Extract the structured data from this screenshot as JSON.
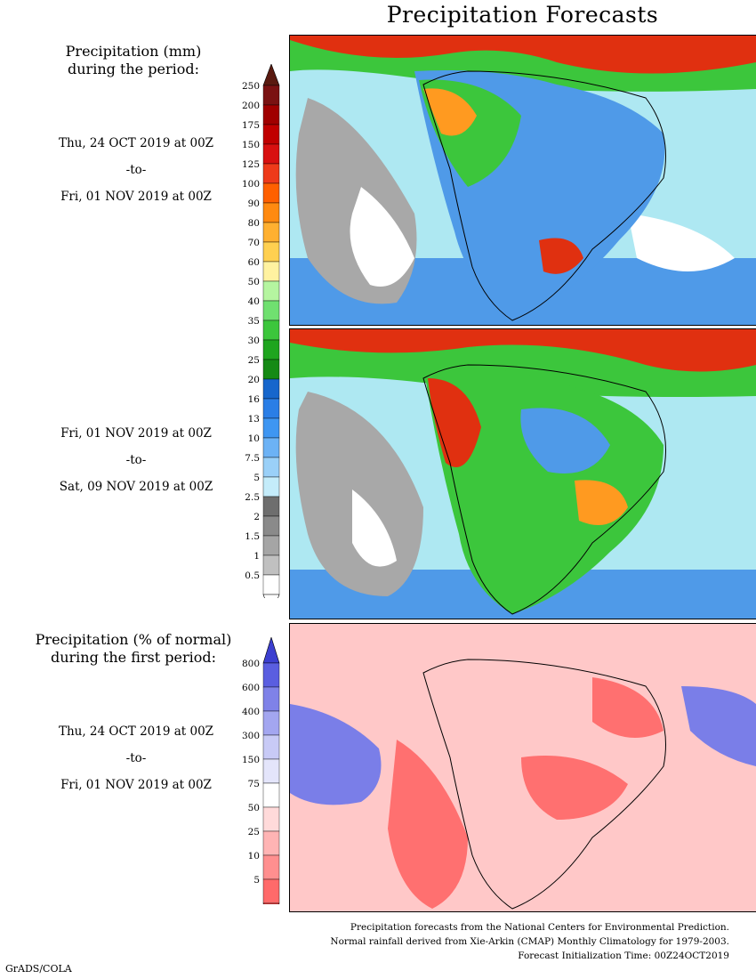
{
  "title": "Precipitation Forecasts",
  "section_mm": {
    "heading_line1": "Precipitation (mm)",
    "heading_line2": "during the period:"
  },
  "period1": {
    "start": "Thu, 24 OCT 2019 at 00Z",
    "sep": "-to-",
    "end": "Fri, 01 NOV 2019 at 00Z"
  },
  "period2": {
    "start": "Fri, 01 NOV 2019 at 00Z",
    "sep": "-to-",
    "end": "Sat, 09 NOV 2019 at 00Z"
  },
  "section_pct": {
    "heading_line1": "Precipitation (% of normal)",
    "heading_line2": "during the first period:"
  },
  "period3": {
    "start": "Thu, 24 OCT 2019 at 00Z",
    "sep": "-to-",
    "end": "Fri, 01 NOV 2019 at 00Z"
  },
  "colorbar_mm": {
    "labels": [
      "250",
      "200",
      "175",
      "150",
      "125",
      "100",
      "90",
      "80",
      "70",
      "60",
      "50",
      "40",
      "35",
      "30",
      "25",
      "20",
      "16",
      "13",
      "10",
      "7.5",
      "5",
      "2.5",
      "2",
      "1.5",
      "1",
      "0.5"
    ],
    "colors": [
      "#7a1212",
      "#a00000",
      "#c00000",
      "#d81010",
      "#ee3a1a",
      "#ff6000",
      "#ff8a10",
      "#ffb030",
      "#ffd050",
      "#fff2a0",
      "#b5f5a0",
      "#70e070",
      "#3cc63c",
      "#1fa51f",
      "#158a15",
      "#1666cc",
      "#2a7ee6",
      "#3e96f2",
      "#6cb2f5",
      "#9ad0f8",
      "#c4ecfa",
      "#6e6e6e",
      "#8a8a8a",
      "#a5a5a5",
      "#c0c0c0",
      "#ffffff"
    ],
    "top_arrow_color": "#5a1a10",
    "bottom_arrow_color": "#ffffff"
  },
  "colorbar_pct": {
    "labels": [
      "800",
      "600",
      "400",
      "300",
      "150",
      "75",
      "50",
      "25",
      "10",
      "5"
    ],
    "colors": [
      "#5a5ee0",
      "#7f82e8",
      "#a3a6f0",
      "#c8caf6",
      "#e4e5fb",
      "#ffffff",
      "#ffdada",
      "#ffb4b4",
      "#ff8f8f",
      "#ff6a6a"
    ],
    "top_arrow_color": "#3c3fd0",
    "bottom_arrow_color": "#f03a3a"
  },
  "footer": {
    "line1": "Precipitation forecasts from the National Centers for Environmental Prediction.",
    "line2": "Normal rainfall derived from Xie-Arkin (CMAP) Monthly Climatology for 1979-2003.",
    "line3": "Forecast Initialization Time: 00Z24OCT2019"
  },
  "credit": "GrADS/COLA",
  "map_colors": {
    "ocean_light": "#aee8f2",
    "ocean_blue": "#4f9ae8",
    "dry_gray": "#a8a8a8",
    "dry_white": "#ffffff",
    "wet_green": "#3cc63c",
    "wet_red": "#e03010",
    "wet_orange": "#ff9a20",
    "pct_red": "#ff7070",
    "pct_pink": "#ffc8c8",
    "pct_blue": "#7a7ee8"
  }
}
